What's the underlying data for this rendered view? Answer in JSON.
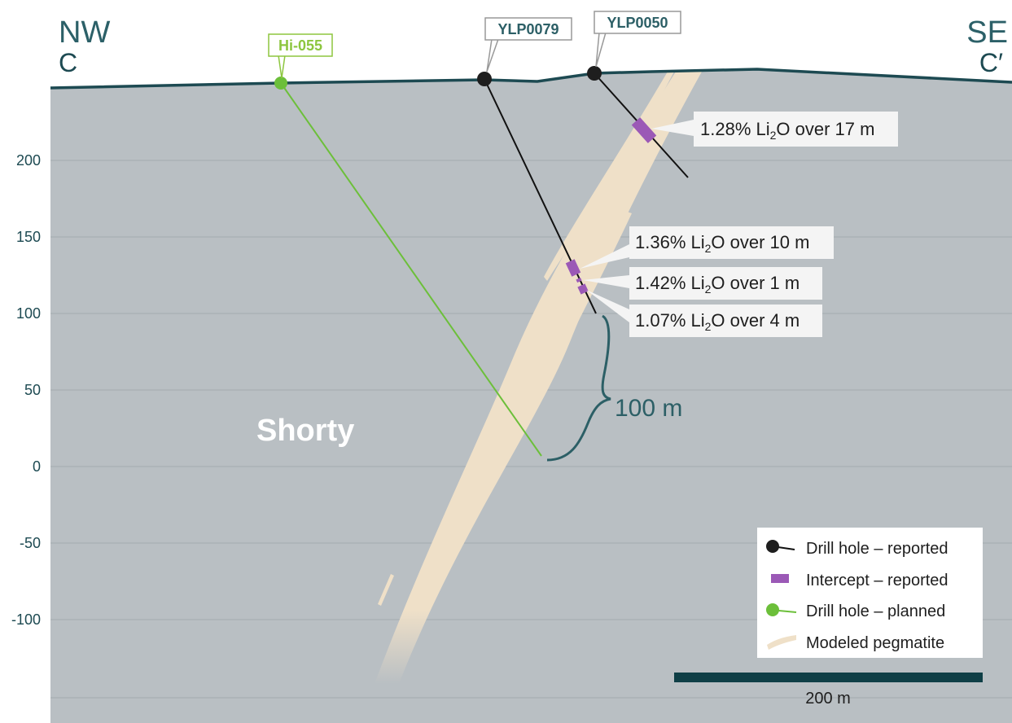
{
  "header": {
    "left_direction": "NW",
    "left_label": "C",
    "right_direction": "SE",
    "right_label": "C′"
  },
  "elevation_axis": {
    "ticks": [
      200,
      150,
      100,
      50,
      0,
      -50,
      -100
    ]
  },
  "drill_holes": [
    {
      "label": "Hi-055"
    },
    {
      "label": "YLP0079"
    },
    {
      "label": "YLP0050"
    }
  ],
  "intercepts": [
    {
      "before": "1.28% Li",
      "sub": "2",
      "after": "O over 17 m"
    },
    {
      "before": "1.36% Li",
      "sub": "2",
      "after": "O over 10 m"
    },
    {
      "before": "1.42% Li",
      "sub": "2",
      "after": "O over 1 m"
    },
    {
      "before": "1.07% Li",
      "sub": "2",
      "after": "O over 4 m"
    }
  ],
  "annotations": {
    "deposit": "Shorty",
    "scale_bracket": "100 m"
  },
  "legend": [
    "Drill hole – reported",
    "Intercept – reported",
    "Drill hole – planned",
    "Modeled pegmatite"
  ],
  "scale_bar": "200 m"
}
